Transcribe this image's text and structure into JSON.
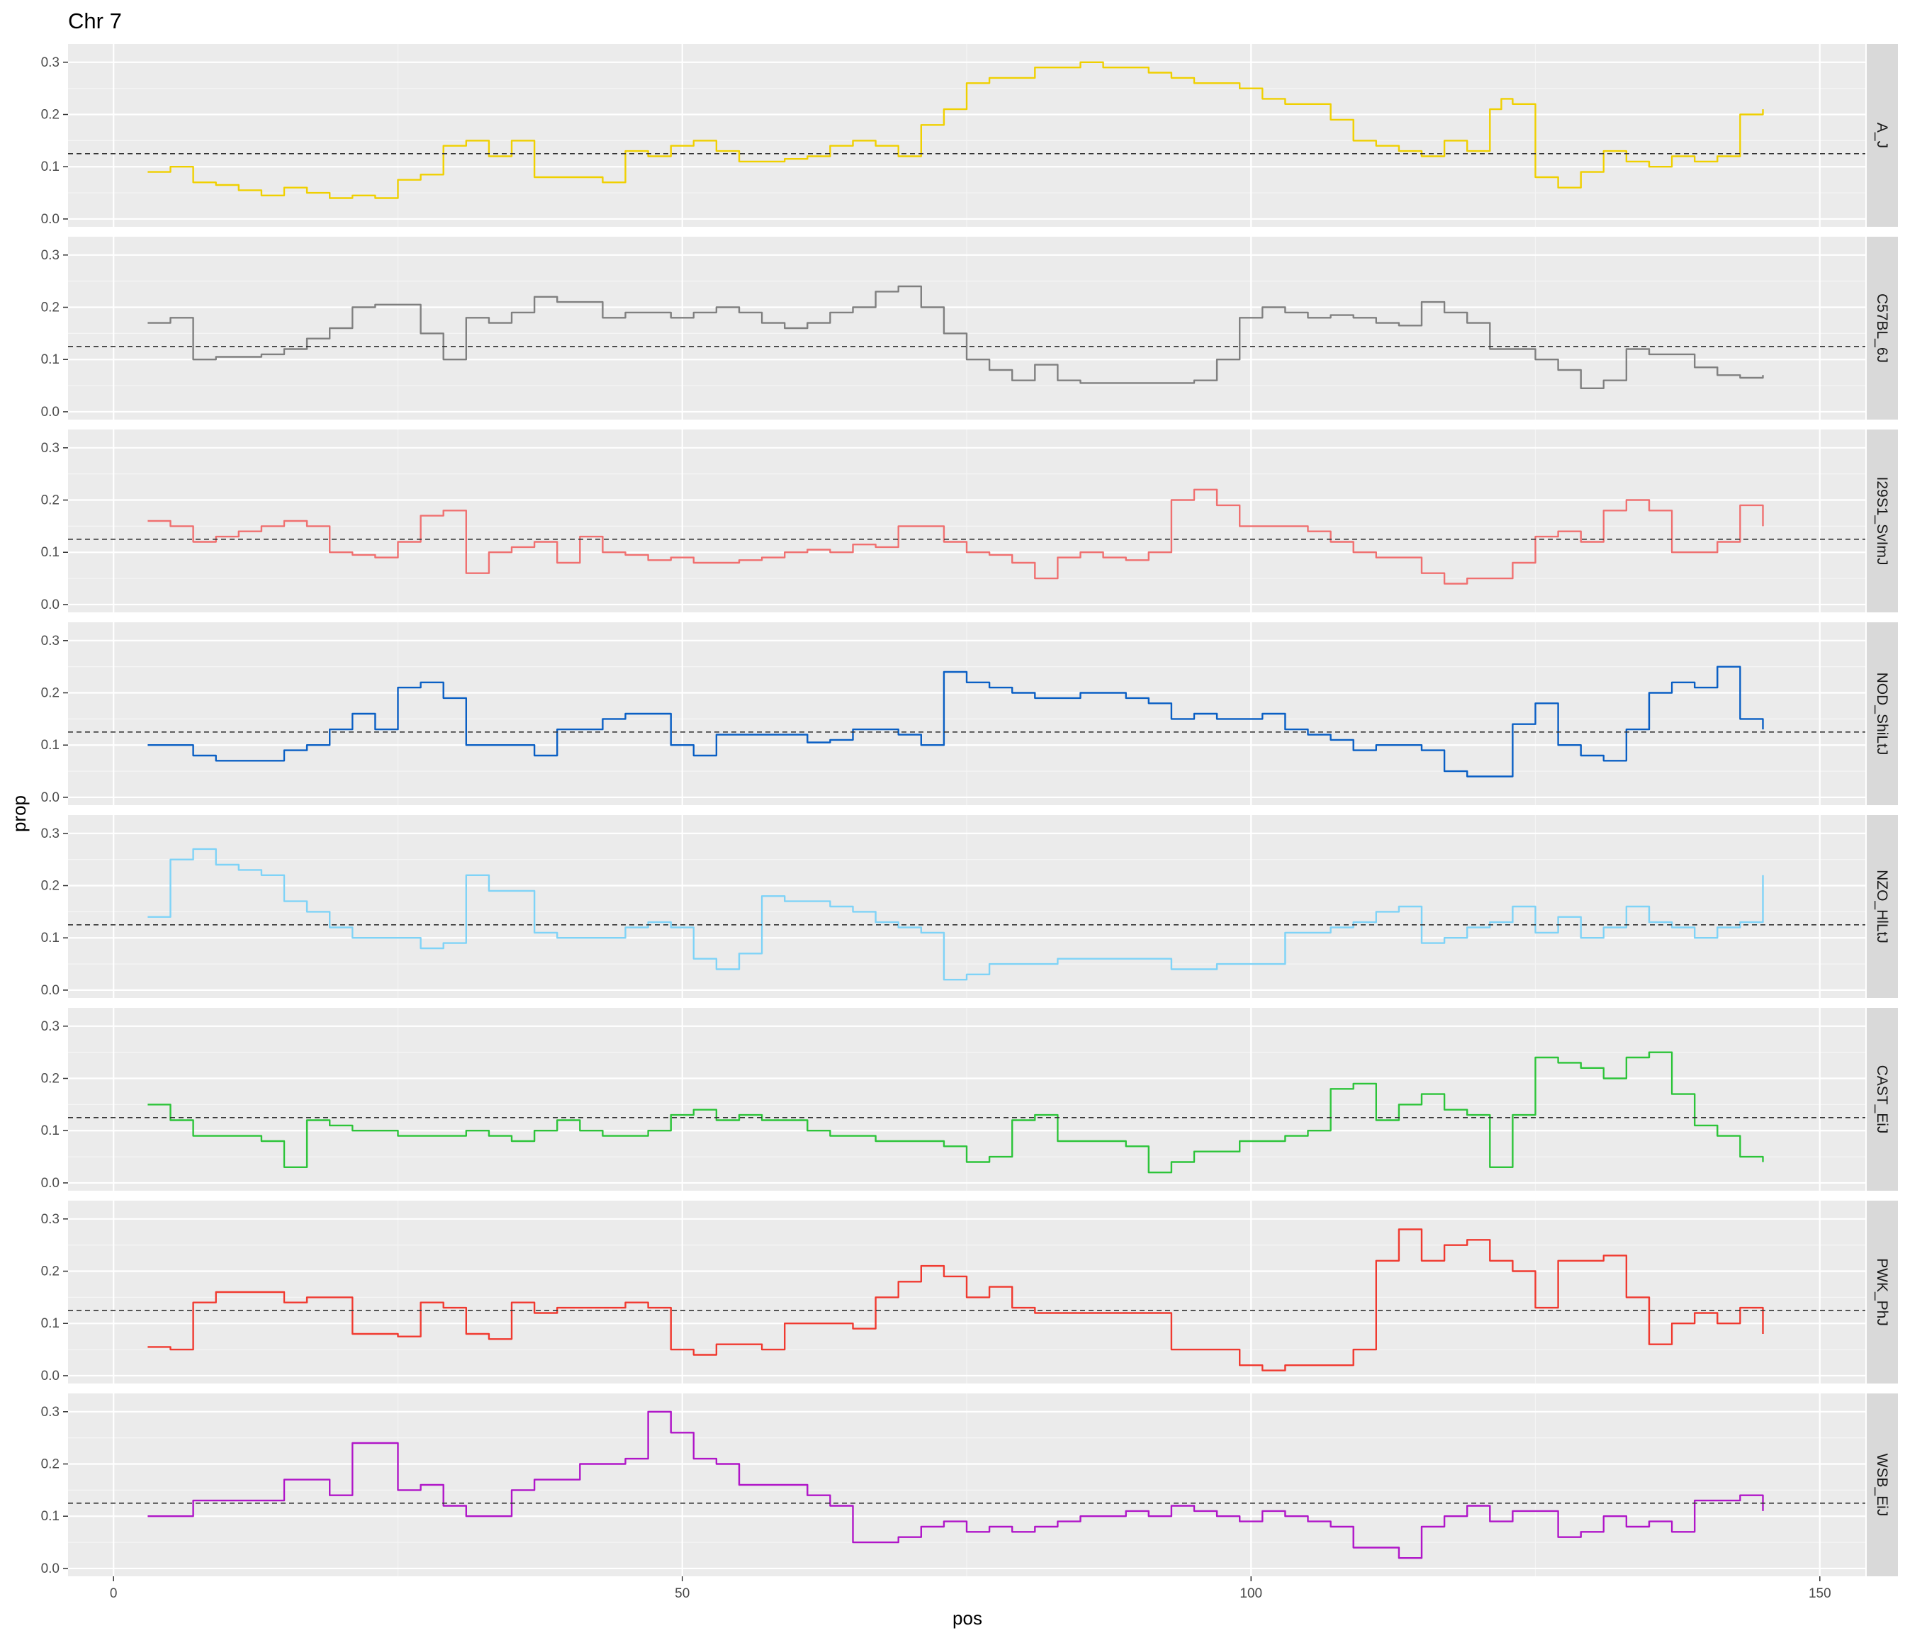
{
  "chart_data": {
    "type": "line",
    "title": "Chr 7",
    "xlabel": "pos",
    "ylabel": "prop",
    "xlim": [
      -4,
      154
    ],
    "ylim": [
      -0.015,
      0.335
    ],
    "x_ticks": [
      0,
      50,
      100,
      150
    ],
    "x_tick_labels": [
      "0",
      "50",
      "100",
      "150"
    ],
    "y_ticks": [
      0.0,
      0.1,
      0.2,
      0.3
    ],
    "y_tick_labels": [
      "0.0",
      "0.1",
      "0.2",
      "0.3"
    ],
    "grid": true,
    "reference_line": {
      "y": 0.125,
      "style": "dashed",
      "color": "#333333"
    },
    "facet_by": "strain",
    "series": [
      {
        "name": "A_J",
        "color": "#F0D000",
        "x": [
          3,
          5,
          7,
          9,
          11,
          13,
          15,
          17,
          19,
          21,
          23,
          25,
          27,
          29,
          31,
          33,
          35,
          37,
          39,
          41,
          43,
          45,
          47,
          49,
          51,
          53,
          55,
          57,
          59,
          61,
          63,
          65,
          67,
          69,
          71,
          73,
          75,
          77,
          79,
          81,
          83,
          85,
          87,
          89,
          91,
          93,
          95,
          97,
          99,
          101,
          103,
          105,
          107,
          109,
          111,
          113,
          115,
          117,
          119,
          121,
          122,
          123,
          125,
          127,
          129,
          131,
          133,
          135,
          137,
          139,
          141,
          143,
          145
        ],
        "y": [
          0.09,
          0.1,
          0.07,
          0.065,
          0.055,
          0.045,
          0.06,
          0.05,
          0.04,
          0.045,
          0.04,
          0.075,
          0.085,
          0.14,
          0.15,
          0.12,
          0.15,
          0.08,
          0.08,
          0.08,
          0.07,
          0.13,
          0.12,
          0.14,
          0.15,
          0.13,
          0.11,
          0.11,
          0.115,
          0.12,
          0.14,
          0.15,
          0.14,
          0.12,
          0.18,
          0.21,
          0.26,
          0.27,
          0.27,
          0.29,
          0.29,
          0.3,
          0.29,
          0.29,
          0.28,
          0.27,
          0.26,
          0.26,
          0.25,
          0.23,
          0.22,
          0.22,
          0.19,
          0.15,
          0.14,
          0.13,
          0.12,
          0.15,
          0.13,
          0.21,
          0.23,
          0.22,
          0.08,
          0.06,
          0.09,
          0.13,
          0.11,
          0.1,
          0.12,
          0.11,
          0.12,
          0.2,
          0.21
        ]
      },
      {
        "name": "C57BL_6J",
        "color": "#808080",
        "x": [
          3,
          5,
          7,
          9,
          11,
          13,
          15,
          17,
          19,
          21,
          23,
          25,
          27,
          29,
          31,
          33,
          35,
          37,
          39,
          41,
          43,
          45,
          47,
          49,
          51,
          53,
          55,
          57,
          59,
          61,
          63,
          65,
          67,
          69,
          71,
          73,
          75,
          77,
          79,
          81,
          83,
          85,
          87,
          89,
          91,
          93,
          95,
          97,
          99,
          101,
          103,
          105,
          107,
          109,
          111,
          113,
          115,
          117,
          119,
          121,
          123,
          125,
          127,
          129,
          131,
          133,
          135,
          137,
          139,
          141,
          143,
          145
        ],
        "y": [
          0.17,
          0.18,
          0.1,
          0.105,
          0.105,
          0.11,
          0.12,
          0.14,
          0.16,
          0.2,
          0.205,
          0.205,
          0.15,
          0.1,
          0.18,
          0.17,
          0.19,
          0.22,
          0.21,
          0.21,
          0.18,
          0.19,
          0.19,
          0.18,
          0.19,
          0.2,
          0.19,
          0.17,
          0.16,
          0.17,
          0.19,
          0.2,
          0.23,
          0.24,
          0.2,
          0.15,
          0.1,
          0.08,
          0.06,
          0.09,
          0.06,
          0.055,
          0.055,
          0.055,
          0.055,
          0.055,
          0.06,
          0.1,
          0.18,
          0.2,
          0.19,
          0.18,
          0.185,
          0.18,
          0.17,
          0.165,
          0.21,
          0.19,
          0.17,
          0.12,
          0.12,
          0.1,
          0.08,
          0.045,
          0.06,
          0.12,
          0.11,
          0.11,
          0.085,
          0.07,
          0.065,
          0.07
        ]
      },
      {
        "name": "I29S1_SvImJ",
        "color": "#F07070",
        "x": [
          3,
          5,
          7,
          9,
          11,
          13,
          15,
          17,
          19,
          21,
          23,
          25,
          27,
          29,
          31,
          33,
          35,
          37,
          39,
          41,
          43,
          45,
          47,
          49,
          51,
          53,
          55,
          57,
          59,
          61,
          63,
          65,
          67,
          69,
          71,
          73,
          75,
          77,
          79,
          81,
          83,
          85,
          87,
          89,
          91,
          93,
          95,
          97,
          99,
          101,
          103,
          105,
          107,
          109,
          111,
          113,
          115,
          117,
          119,
          121,
          123,
          125,
          127,
          129,
          131,
          133,
          135,
          137,
          139,
          141,
          143,
          145
        ],
        "y": [
          0.16,
          0.15,
          0.12,
          0.13,
          0.14,
          0.15,
          0.16,
          0.15,
          0.1,
          0.095,
          0.09,
          0.12,
          0.17,
          0.18,
          0.06,
          0.1,
          0.11,
          0.12,
          0.08,
          0.13,
          0.1,
          0.095,
          0.085,
          0.09,
          0.08,
          0.08,
          0.085,
          0.09,
          0.1,
          0.105,
          0.1,
          0.115,
          0.11,
          0.15,
          0.15,
          0.12,
          0.1,
          0.095,
          0.08,
          0.05,
          0.09,
          0.1,
          0.09,
          0.085,
          0.1,
          0.2,
          0.22,
          0.19,
          0.15,
          0.15,
          0.15,
          0.14,
          0.12,
          0.1,
          0.09,
          0.09,
          0.06,
          0.04,
          0.05,
          0.05,
          0.08,
          0.13,
          0.14,
          0.12,
          0.18,
          0.2,
          0.18,
          0.1,
          0.1,
          0.12,
          0.19,
          0.15
        ]
      },
      {
        "name": "NOD_ShiLtJ",
        "color": "#0A5FC4",
        "x": [
          3,
          5,
          7,
          9,
          11,
          13,
          15,
          17,
          19,
          21,
          23,
          25,
          27,
          29,
          31,
          33,
          35,
          37,
          39,
          41,
          43,
          45,
          47,
          49,
          51,
          53,
          55,
          57,
          59,
          61,
          63,
          65,
          67,
          69,
          71,
          73,
          75,
          77,
          79,
          81,
          83,
          85,
          87,
          89,
          91,
          93,
          95,
          97,
          99,
          101,
          103,
          105,
          107,
          109,
          111,
          113,
          115,
          117,
          119,
          121,
          123,
          125,
          127,
          129,
          131,
          133,
          135,
          137,
          139,
          141,
          143,
          145
        ],
        "y": [
          0.1,
          0.1,
          0.08,
          0.07,
          0.07,
          0.07,
          0.09,
          0.1,
          0.13,
          0.16,
          0.13,
          0.21,
          0.22,
          0.19,
          0.1,
          0.1,
          0.1,
          0.08,
          0.13,
          0.13,
          0.15,
          0.16,
          0.16,
          0.1,
          0.08,
          0.12,
          0.12,
          0.12,
          0.12,
          0.105,
          0.11,
          0.13,
          0.13,
          0.12,
          0.1,
          0.24,
          0.22,
          0.21,
          0.2,
          0.19,
          0.19,
          0.2,
          0.2,
          0.19,
          0.18,
          0.15,
          0.16,
          0.15,
          0.15,
          0.16,
          0.13,
          0.12,
          0.11,
          0.09,
          0.1,
          0.1,
          0.09,
          0.05,
          0.04,
          0.04,
          0.14,
          0.18,
          0.1,
          0.08,
          0.07,
          0.13,
          0.2,
          0.22,
          0.21,
          0.25,
          0.15,
          0.13
        ]
      },
      {
        "name": "NZO_HlLtJ",
        "color": "#7FD3F7",
        "x": [
          3,
          5,
          7,
          9,
          11,
          13,
          15,
          17,
          19,
          21,
          23,
          25,
          27,
          29,
          31,
          33,
          35,
          37,
          39,
          41,
          43,
          45,
          47,
          49,
          51,
          53,
          55,
          57,
          59,
          61,
          63,
          65,
          67,
          69,
          71,
          73,
          75,
          77,
          79,
          81,
          83,
          85,
          87,
          89,
          91,
          93,
          95,
          97,
          99,
          101,
          103,
          105,
          107,
          109,
          111,
          113,
          115,
          117,
          119,
          121,
          123,
          125,
          127,
          129,
          131,
          133,
          135,
          137,
          139,
          141,
          143,
          145
        ],
        "y": [
          0.14,
          0.25,
          0.27,
          0.24,
          0.23,
          0.22,
          0.17,
          0.15,
          0.12,
          0.1,
          0.1,
          0.1,
          0.08,
          0.09,
          0.22,
          0.19,
          0.19,
          0.11,
          0.1,
          0.1,
          0.1,
          0.12,
          0.13,
          0.12,
          0.06,
          0.04,
          0.07,
          0.18,
          0.17,
          0.17,
          0.16,
          0.15,
          0.13,
          0.12,
          0.11,
          0.02,
          0.03,
          0.05,
          0.05,
          0.05,
          0.06,
          0.06,
          0.06,
          0.06,
          0.06,
          0.04,
          0.04,
          0.05,
          0.05,
          0.05,
          0.11,
          0.11,
          0.12,
          0.13,
          0.15,
          0.16,
          0.09,
          0.1,
          0.12,
          0.13,
          0.16,
          0.11,
          0.14,
          0.1,
          0.12,
          0.16,
          0.13,
          0.12,
          0.1,
          0.12,
          0.13,
          0.22
        ]
      },
      {
        "name": "CAST_EiJ",
        "color": "#2DC43A",
        "x": [
          3,
          5,
          7,
          9,
          11,
          13,
          15,
          17,
          19,
          21,
          23,
          25,
          27,
          29,
          31,
          33,
          35,
          37,
          39,
          41,
          43,
          45,
          47,
          49,
          51,
          53,
          55,
          57,
          59,
          61,
          63,
          65,
          67,
          69,
          71,
          73,
          75,
          77,
          79,
          81,
          83,
          85,
          87,
          89,
          91,
          93,
          95,
          97,
          99,
          101,
          103,
          105,
          107,
          109,
          111,
          113,
          115,
          117,
          119,
          121,
          123,
          125,
          127,
          129,
          131,
          133,
          135,
          137,
          139,
          141,
          143,
          145
        ],
        "y": [
          0.15,
          0.12,
          0.09,
          0.09,
          0.09,
          0.08,
          0.03,
          0.12,
          0.11,
          0.1,
          0.1,
          0.09,
          0.09,
          0.09,
          0.1,
          0.09,
          0.08,
          0.1,
          0.12,
          0.1,
          0.09,
          0.09,
          0.1,
          0.13,
          0.14,
          0.12,
          0.13,
          0.12,
          0.12,
          0.1,
          0.09,
          0.09,
          0.08,
          0.08,
          0.08,
          0.07,
          0.04,
          0.05,
          0.12,
          0.13,
          0.08,
          0.08,
          0.08,
          0.07,
          0.02,
          0.04,
          0.06,
          0.06,
          0.08,
          0.08,
          0.09,
          0.1,
          0.18,
          0.19,
          0.12,
          0.15,
          0.17,
          0.14,
          0.13,
          0.03,
          0.13,
          0.24,
          0.23,
          0.22,
          0.2,
          0.24,
          0.25,
          0.17,
          0.11,
          0.09,
          0.05,
          0.04
        ]
      },
      {
        "name": "PWK_PhJ",
        "color": "#F03A30",
        "x": [
          3,
          5,
          7,
          9,
          11,
          13,
          15,
          17,
          19,
          21,
          23,
          25,
          27,
          29,
          31,
          33,
          35,
          37,
          39,
          41,
          43,
          45,
          47,
          49,
          51,
          53,
          55,
          57,
          59,
          61,
          63,
          65,
          67,
          69,
          71,
          73,
          75,
          77,
          79,
          81,
          83,
          85,
          87,
          89,
          91,
          93,
          95,
          97,
          99,
          101,
          103,
          105,
          107,
          109,
          111,
          113,
          115,
          117,
          119,
          121,
          123,
          125,
          127,
          129,
          131,
          133,
          135,
          137,
          139,
          141,
          143,
          145
        ],
        "y": [
          0.055,
          0.05,
          0.14,
          0.16,
          0.16,
          0.16,
          0.14,
          0.15,
          0.15,
          0.08,
          0.08,
          0.075,
          0.14,
          0.13,
          0.08,
          0.07,
          0.14,
          0.12,
          0.13,
          0.13,
          0.13,
          0.14,
          0.13,
          0.05,
          0.04,
          0.06,
          0.06,
          0.05,
          0.1,
          0.1,
          0.1,
          0.09,
          0.15,
          0.18,
          0.21,
          0.19,
          0.15,
          0.17,
          0.13,
          0.12,
          0.12,
          0.12,
          0.12,
          0.12,
          0.12,
          0.05,
          0.05,
          0.05,
          0.02,
          0.01,
          0.02,
          0.02,
          0.02,
          0.05,
          0.22,
          0.28,
          0.22,
          0.25,
          0.26,
          0.22,
          0.2,
          0.13,
          0.22,
          0.22,
          0.23,
          0.15,
          0.06,
          0.1,
          0.12,
          0.1,
          0.13,
          0.08
        ]
      },
      {
        "name": "WSB_EiJ",
        "color": "#B016C8",
        "x": [
          3,
          5,
          7,
          9,
          11,
          13,
          15,
          17,
          19,
          21,
          23,
          25,
          27,
          29,
          31,
          33,
          35,
          37,
          39,
          41,
          43,
          45,
          47,
          49,
          51,
          53,
          55,
          57,
          59,
          61,
          63,
          65,
          67,
          69,
          71,
          73,
          75,
          77,
          79,
          81,
          83,
          85,
          87,
          89,
          91,
          93,
          95,
          97,
          99,
          101,
          103,
          105,
          107,
          109,
          111,
          113,
          115,
          117,
          119,
          121,
          123,
          125,
          127,
          129,
          131,
          133,
          135,
          137,
          139,
          141,
          143,
          145
        ],
        "y": [
          0.1,
          0.1,
          0.13,
          0.13,
          0.13,
          0.13,
          0.17,
          0.17,
          0.14,
          0.24,
          0.24,
          0.15,
          0.16,
          0.12,
          0.1,
          0.1,
          0.15,
          0.17,
          0.17,
          0.2,
          0.2,
          0.21,
          0.3,
          0.26,
          0.21,
          0.2,
          0.16,
          0.16,
          0.16,
          0.14,
          0.12,
          0.05,
          0.05,
          0.06,
          0.08,
          0.09,
          0.07,
          0.08,
          0.07,
          0.08,
          0.09,
          0.1,
          0.1,
          0.11,
          0.1,
          0.12,
          0.11,
          0.1,
          0.09,
          0.11,
          0.1,
          0.09,
          0.08,
          0.04,
          0.04,
          0.02,
          0.08,
          0.1,
          0.12,
          0.09,
          0.11,
          0.11,
          0.06,
          0.07,
          0.1,
          0.08,
          0.09,
          0.07,
          0.13,
          0.13,
          0.14,
          0.11
        ]
      }
    ]
  }
}
